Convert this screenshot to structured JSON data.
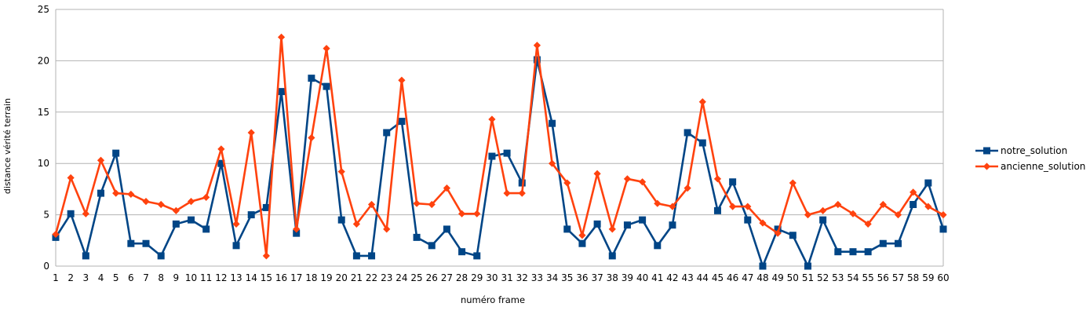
{
  "chart_data": {
    "type": "line",
    "title": "",
    "xlabel": "numéro frame",
    "ylabel": "distance vérité terrain",
    "ylim": [
      0,
      25
    ],
    "yticks": [
      0,
      5,
      10,
      15,
      20,
      25
    ],
    "grid": "horizontal",
    "legend_position": "right",
    "categories": [
      "1",
      "2",
      "3",
      "4",
      "5",
      "6",
      "7",
      "8",
      "9",
      "10",
      "11",
      "12",
      "13",
      "14",
      "15",
      "16",
      "17",
      "18",
      "19",
      "20",
      "21",
      "22",
      "23",
      "24",
      "25",
      "26",
      "27",
      "28",
      "29",
      "30",
      "31",
      "32",
      "33",
      "34",
      "35",
      "36",
      "37",
      "38",
      "39",
      "40",
      "41",
      "42",
      "43",
      "44",
      "45",
      "46",
      "47",
      "48",
      "49",
      "50",
      "51",
      "52",
      "53",
      "54",
      "55",
      "56",
      "57",
      "58",
      "59",
      "60"
    ],
    "series": [
      {
        "name": "notre_solution",
        "color": "#004586",
        "marker": "square",
        "values": [
          2.8,
          5.1,
          1.0,
          7.1,
          11.0,
          2.2,
          2.2,
          1.0,
          4.1,
          4.5,
          3.6,
          10.0,
          2.0,
          5.0,
          5.7,
          17.0,
          3.2,
          18.3,
          17.5,
          4.5,
          1.0,
          1.0,
          13.0,
          14.1,
          2.8,
          2.0,
          3.6,
          1.4,
          1.0,
          10.7,
          11.0,
          8.1,
          20.1,
          13.9,
          3.6,
          2.2,
          4.1,
          1.0,
          4.0,
          4.5,
          2.0,
          4.0,
          13.0,
          12.0,
          5.4,
          8.2,
          4.5,
          0.0,
          3.6,
          3.0,
          0.0,
          4.5,
          1.4,
          1.4,
          1.4,
          2.2,
          2.2,
          6.0,
          8.1,
          3.6
        ]
      },
      {
        "name": "ancienne_solution",
        "color": "#ff420e",
        "marker": "diamond",
        "values": [
          3.1,
          8.6,
          5.1,
          10.3,
          7.1,
          7.0,
          6.3,
          6.0,
          5.4,
          6.3,
          6.7,
          11.4,
          4.1,
          13.0,
          1.0,
          22.3,
          3.6,
          12.5,
          21.2,
          9.2,
          4.1,
          6.0,
          3.6,
          18.1,
          6.1,
          6.0,
          7.6,
          5.1,
          5.1,
          14.3,
          7.1,
          7.1,
          21.5,
          10.0,
          8.1,
          3.0,
          9.0,
          3.6,
          8.5,
          8.2,
          6.1,
          5.8,
          7.6,
          16.0,
          8.5,
          5.8,
          5.8,
          4.2,
          3.2,
          8.1,
          5.0,
          5.4,
          6.0,
          5.1,
          4.1,
          6.0,
          5.0,
          7.2,
          5.8,
          5.0
        ]
      }
    ]
  }
}
